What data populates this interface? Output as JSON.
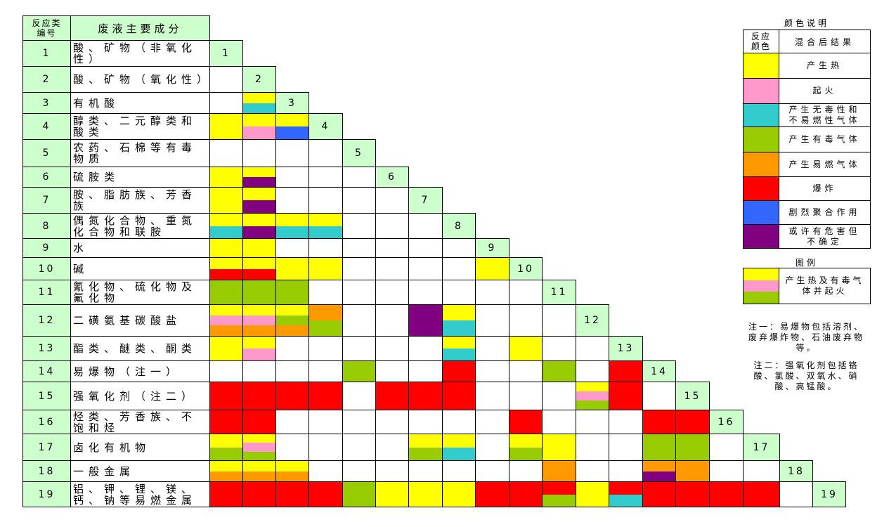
{
  "header": {
    "number": [
      "反应类",
      "编号"
    ],
    "name": "废液主要成分"
  },
  "rows": [
    {
      "number": "1",
      "name": "酸、矿物（非氧化性）",
      "cells": []
    },
    {
      "number": "2",
      "name": "酸、矿物（氧化性）",
      "cells": [
        []
      ]
    },
    {
      "number": "3",
      "name": "有机酸",
      "cells": [
        [],
        [
          "#ffff00",
          "#33cccc"
        ]
      ]
    },
    {
      "number": "4",
      "name": "醇类、二元醇类和酸类",
      "cells": [
        [
          "#ffff00"
        ],
        [
          "#ffff00",
          "#ff99cc"
        ],
        [
          "#ffff00",
          "#3366ff"
        ]
      ]
    },
    {
      "number": "5",
      "name": "农药、石棉等有毒物质",
      "cells": [
        [],
        [],
        [],
        []
      ]
    },
    {
      "number": "6",
      "name": "硫胺类",
      "cells": [
        [
          "#ffff00"
        ],
        [
          "#ffff00",
          "#800080"
        ],
        [],
        [],
        []
      ]
    },
    {
      "number": "7",
      "name": "胺、脂肪族、芳香族",
      "cells": [
        [
          "#ffff00"
        ],
        [
          "#ffff00",
          "#800080"
        ],
        [],
        [],
        [],
        []
      ]
    },
    {
      "number": "8",
      "name": "偶氮化合物、重氮化合物和联胺",
      "cells": [
        [
          "#ffff00",
          "#33cccc"
        ],
        [
          "#ffff00",
          "#800080"
        ],
        [
          "#ffff00",
          "#33cccc"
        ],
        [
          "#ffff00",
          "#33cccc"
        ],
        [],
        [],
        []
      ]
    },
    {
      "number": "9",
      "name": "水",
      "cells": [
        [
          "#ffff00"
        ],
        [
          "#ffff00"
        ],
        [],
        [],
        [],
        [],
        [],
        []
      ]
    },
    {
      "number": "10",
      "name": "碱",
      "cells": [
        [
          "#ffff00",
          "#ff0000"
        ],
        [
          "#ffff00",
          "#ff0000"
        ],
        [
          "#ffff00"
        ],
        [
          "#ffff00"
        ],
        [],
        [],
        [],
        [],
        [
          "#ffff00"
        ]
      ]
    },
    {
      "number": "11",
      "name": "氰化物、硫化物及氟化物",
      "cells": [
        [
          "#99cc00"
        ],
        [
          "#99cc00"
        ],
        [
          "#99cc00"
        ],
        [],
        [],
        [],
        [],
        [],
        [],
        []
      ]
    },
    {
      "number": "12",
      "name": "二磺氨基碳酸盐",
      "cells": [
        [
          "#ffff00",
          "#ff99cc",
          "#ff9900"
        ],
        [
          "#ffff00",
          "#ff99cc",
          "#ff9900"
        ],
        [
          "#ffff00",
          "#99cc00",
          "#ff9900"
        ],
        [
          "#ff9900",
          "#99cc00"
        ],
        [],
        [],
        [
          "#800080"
        ],
        [
          "#ffff00",
          "#33cccc"
        ],
        [],
        [],
        []
      ]
    },
    {
      "number": "13",
      "name": "酯类、醚类、酮类",
      "cells": [
        [
          "#ffff00"
        ],
        [
          "#ffff00",
          "#ff99cc"
        ],
        [],
        [],
        [],
        [],
        [],
        [
          "#ffff00",
          "#33cccc"
        ],
        [],
        [
          "#ffff00"
        ],
        [],
        []
      ]
    },
    {
      "number": "14",
      "name": "易爆物（注一）",
      "cells": [
        [],
        [],
        [],
        [],
        [
          "#99cc00"
        ],
        [],
        [],
        [
          "#ff0000"
        ],
        [],
        [],
        [
          "#99cc00"
        ],
        [],
        [
          "#ff0000"
        ]
      ]
    },
    {
      "number": "15",
      "name": "强氧化剂（注二）",
      "cells": [
        [
          "#ff0000"
        ],
        [
          "#ff0000"
        ],
        [
          "#ff0000"
        ],
        [
          "#ff0000"
        ],
        [],
        [
          "#ff0000"
        ],
        [
          "#ff0000"
        ],
        [
          "#ff0000"
        ],
        [],
        [],
        [],
        [
          "#ffff00",
          "#ff99cc",
          "#99cc00"
        ],
        [
          "#ff0000"
        ],
        []
      ]
    },
    {
      "number": "16",
      "name": "烃类、芳香族、不饱和烃",
      "cells": [
        [
          "#ff0000"
        ],
        [
          "#ff0000"
        ],
        [],
        [],
        [],
        [],
        [],
        [],
        [],
        [
          "#ff0000"
        ],
        [],
        [],
        [],
        [
          "#ff0000"
        ],
        [
          "#ff0000"
        ]
      ]
    },
    {
      "number": "17",
      "name": "卤化有机物",
      "cells": [
        [
          "#ffff00",
          "#99cc00"
        ],
        [
          "#ffff00",
          "#ff99cc",
          "#99cc00"
        ],
        [],
        [],
        [],
        [],
        [
          "#ffff00",
          "#99cc00"
        ],
        [
          "#ffff00",
          "#33cccc"
        ],
        [],
        [
          "#ffff00",
          "#99cc00"
        ],
        [
          "#ffff00"
        ],
        [],
        [],
        [
          "#99cc00"
        ],
        [
          "#99cc00"
        ],
        []
      ]
    },
    {
      "number": "18",
      "name": "一般金属",
      "cells": [
        [
          "#ffff00",
          "#ff9900"
        ],
        [
          "#ffff00",
          "#ff9900"
        ],
        [
          "#ffff00",
          "#ff9900"
        ],
        [],
        [],
        [],
        [],
        [],
        [],
        [],
        [
          "#ff9900"
        ],
        [],
        [],
        [
          "#ff9900",
          "#800080"
        ],
        [
          "#ff9900"
        ],
        [],
        []
      ]
    },
    {
      "number": "19",
      "name": "铝、钾、锂、镁、钙、钠等易燃金属",
      "cells": [
        [
          "#ff0000"
        ],
        [
          "#ff0000"
        ],
        [
          "#ff0000"
        ],
        [
          "#ff0000"
        ],
        [
          "#99cc00"
        ],
        [
          "#ffff00"
        ],
        [
          "#ffff00"
        ],
        [
          "#ffff00"
        ],
        [
          "#ff0000"
        ],
        [
          "#ff0000"
        ],
        [
          "#ff0000",
          "#99cc00"
        ],
        [
          "#ffff00"
        ],
        [
          "#ff0000",
          "#33cccc"
        ],
        [
          "#ff0000"
        ],
        [
          "#ff0000"
        ],
        [
          "#ff0000"
        ],
        [
          "#ff0000"
        ],
        []
      ]
    }
  ],
  "legend": {
    "title": "颜色说明",
    "header": [
      "反应颜色",
      "混合后结果"
    ],
    "items": [
      {
        "color": "#ffff00",
        "label": "产生热"
      },
      {
        "color": "#ff99cc",
        "label": "起火"
      },
      {
        "color": "#33cccc",
        "label": "产生无毒性和不易燃性气体"
      },
      {
        "color": "#99cc00",
        "label": "产生有毒气体"
      },
      {
        "color": "#ff9900",
        "label": "产生易燃气体"
      },
      {
        "color": "#ff0000",
        "label": "爆炸"
      },
      {
        "color": "#3366ff",
        "label": "剧烈聚合作用"
      },
      {
        "color": "#800080",
        "label": "或许有危害但不确定"
      }
    ]
  },
  "example": {
    "title": "图例",
    "colors": [
      "#ffff00",
      "#ff99cc",
      "#99cc00"
    ],
    "label": "产生热及有毒气体并起火"
  },
  "notes": [
    "注一：易爆物包括溶剂、废弃爆炸物、石油废弃物等。",
    "注二：强氧化剂包括铬酸、氯酸、双氧水、硝酸、高锰酸。"
  ]
}
